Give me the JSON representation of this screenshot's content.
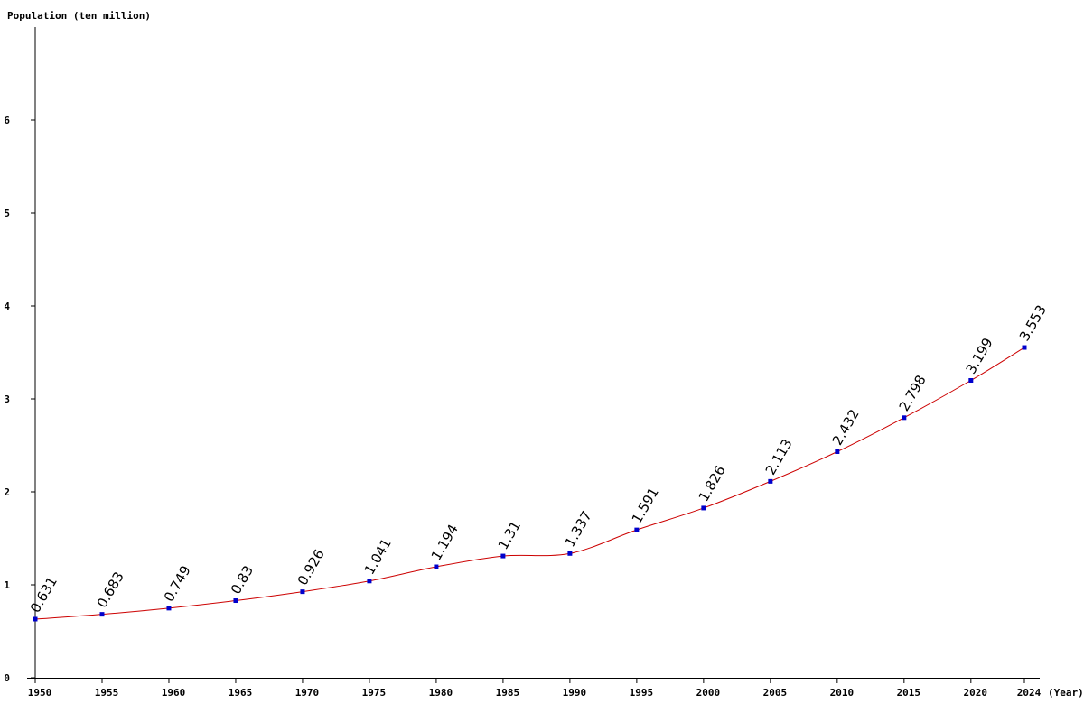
{
  "chart_data": {
    "type": "line",
    "ylabel": "Population (ten million)",
    "xlabel": "(Year)",
    "x": [
      1950,
      1955,
      1960,
      1965,
      1970,
      1975,
      1980,
      1985,
      1990,
      1995,
      2000,
      2005,
      2010,
      2015,
      2020,
      2024
    ],
    "x_tick_labels": [
      "1950",
      "1955",
      "1960",
      "1965",
      "1970",
      "1975",
      "1980",
      "1985",
      "1990",
      "1995",
      "2000",
      "2005",
      "2010",
      "2015",
      "2020",
      "2024"
    ],
    "values": [
      0.631,
      0.683,
      0.749,
      0.83,
      0.926,
      1.041,
      1.194,
      1.31,
      1.337,
      1.591,
      1.826,
      2.113,
      2.432,
      2.798,
      3.199,
      3.553
    ],
    "data_labels": [
      "0.631",
      "0.683",
      "0.749",
      "0.83",
      "0.926",
      "1.041",
      "1.194",
      "1.31",
      "1.337",
      "1.591",
      "1.826",
      "2.113",
      "2.432",
      "2.798",
      "3.199",
      "3.553"
    ],
    "y_ticks": [
      0,
      1,
      2,
      3,
      4,
      5,
      6
    ],
    "y_tick_labels": [
      "0",
      "1",
      "2",
      "3",
      "4",
      "5",
      "6"
    ],
    "xlim": [
      1950,
      2024
    ],
    "ylim": [
      0,
      7
    ],
    "grid": false,
    "legend": "none",
    "colors": {
      "line": "#cc0000",
      "marker": "#0000cc",
      "axis": "#000000",
      "text": "#000000"
    }
  }
}
